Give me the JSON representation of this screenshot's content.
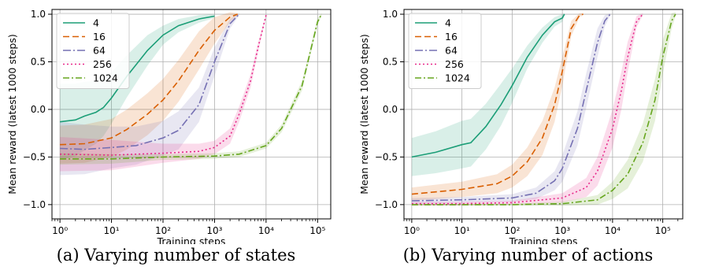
{
  "chart_data": [
    {
      "type": "line",
      "panel_label": "(a)",
      "caption": "(a) Varying number of states",
      "xlabel": "Training steps",
      "ylabel": "Mean reward (latest 1000 steps)",
      "x_scale": "log",
      "xlim": [
        0.7,
        180000
      ],
      "ylim": [
        -1.15,
        1.05
      ],
      "x_ticks": [
        1,
        10,
        100,
        1000,
        10000,
        100000
      ],
      "x_tick_labels": [
        "10⁰",
        "10¹",
        "10²",
        "10³",
        "10⁴",
        "10⁵"
      ],
      "y_ticks": [
        -1.0,
        -0.5,
        0.0,
        0.5,
        1.0
      ],
      "y_tick_labels": [
        "−1.0",
        "−0.5",
        "0.0",
        "0.5",
        "1.0"
      ],
      "grid": true,
      "legend_position": "top-left",
      "series": [
        {
          "name": "4",
          "color": "#1b9e77",
          "dash": "solid",
          "x": [
            1,
            2,
            3,
            5,
            7,
            10,
            20,
            50,
            100,
            200,
            500,
            1000
          ],
          "y": [
            -0.13,
            -0.11,
            -0.07,
            -0.03,
            0.02,
            0.12,
            0.35,
            0.62,
            0.78,
            0.88,
            0.95,
            0.98
          ],
          "band": [
            0.4,
            0.38,
            0.36,
            0.33,
            0.3,
            0.27,
            0.22,
            0.16,
            0.1,
            0.07,
            0.04,
            0.02
          ]
        },
        {
          "name": "16",
          "color": "#d95f02",
          "dash": "8,4",
          "x": [
            1,
            3,
            10,
            20,
            50,
            100,
            200,
            500,
            1000,
            2000,
            2800
          ],
          "y": [
            -0.37,
            -0.36,
            -0.3,
            -0.21,
            -0.05,
            0.1,
            0.3,
            0.62,
            0.83,
            0.97,
            1.0
          ],
          "band": [
            0.2,
            0.2,
            0.2,
            0.21,
            0.22,
            0.22,
            0.22,
            0.2,
            0.14,
            0.05,
            0.01
          ]
        },
        {
          "name": "64",
          "color": "#7570b3",
          "dash": "10,3,2,3",
          "x": [
            1,
            3,
            10,
            30,
            100,
            200,
            500,
            1000,
            2000,
            3000
          ],
          "y": [
            -0.41,
            -0.42,
            -0.4,
            -0.38,
            -0.3,
            -0.22,
            0.05,
            0.5,
            0.9,
            1.0
          ],
          "band": [
            0.28,
            0.26,
            0.22,
            0.2,
            0.18,
            0.2,
            0.18,
            0.15,
            0.05,
            0.01
          ]
        },
        {
          "name": "256",
          "color": "#e7298a",
          "dash": "2,3",
          "x": [
            1,
            10,
            100,
            500,
            1000,
            2000,
            3000,
            5000,
            7000,
            10000
          ],
          "y": [
            -0.47,
            -0.48,
            -0.46,
            -0.44,
            -0.4,
            -0.28,
            -0.05,
            0.3,
            0.65,
            0.99
          ],
          "band": [
            0.18,
            0.16,
            0.1,
            0.08,
            0.07,
            0.08,
            0.08,
            0.07,
            0.05,
            0.01
          ]
        },
        {
          "name": "1024",
          "color": "#66a61e",
          "dash": "8,3,2,3",
          "x": [
            1,
            10,
            100,
            1000,
            3000,
            10000,
            20000,
            50000,
            100000,
            120000
          ],
          "y": [
            -0.52,
            -0.52,
            -0.5,
            -0.49,
            -0.47,
            -0.38,
            -0.2,
            0.25,
            0.92,
            1.0
          ],
          "band": [
            0.06,
            0.05,
            0.03,
            0.03,
            0.03,
            0.03,
            0.04,
            0.05,
            0.04,
            0.01
          ]
        }
      ]
    },
    {
      "type": "line",
      "panel_label": "(b)",
      "caption": "(b) Varying number of actions",
      "xlabel": "Training steps",
      "ylabel": "Mean reward (latest 1000 steps)",
      "x_scale": "log",
      "xlim": [
        0.7,
        250000
      ],
      "ylim": [
        -1.15,
        1.05
      ],
      "x_ticks": [
        1,
        10,
        100,
        1000,
        10000,
        100000
      ],
      "x_tick_labels": [
        "10⁰",
        "10¹",
        "10²",
        "10³",
        "10⁴",
        "10⁵"
      ],
      "y_ticks": [
        -1.0,
        -0.5,
        0.0,
        0.5,
        1.0
      ],
      "y_tick_labels": [
        "−1.0",
        "−0.5",
        "0.0",
        "0.5",
        "1.0"
      ],
      "grid": true,
      "legend_position": "top-left",
      "series": [
        {
          "name": "4",
          "color": "#1b9e77",
          "dash": "solid",
          "x": [
            1,
            3,
            10,
            15,
            30,
            60,
            100,
            200,
            400,
            700,
            1000,
            1100
          ],
          "y": [
            -0.5,
            -0.45,
            -0.37,
            -0.35,
            -0.18,
            0.05,
            0.25,
            0.55,
            0.78,
            0.92,
            0.96,
            1.0
          ],
          "band": [
            0.2,
            0.22,
            0.25,
            0.25,
            0.24,
            0.22,
            0.18,
            0.12,
            0.08,
            0.05,
            0.04,
            0.01
          ]
        },
        {
          "name": "16",
          "color": "#d95f02",
          "dash": "8,4",
          "x": [
            1,
            10,
            50,
            100,
            200,
            400,
            700,
            1000,
            1500,
            2200,
            2600
          ],
          "y": [
            -0.89,
            -0.84,
            -0.78,
            -0.7,
            -0.55,
            -0.3,
            0.05,
            0.4,
            0.85,
            0.99,
            1.0
          ],
          "band": [
            0.07,
            0.08,
            0.1,
            0.12,
            0.15,
            0.18,
            0.18,
            0.15,
            0.08,
            0.02,
            0.01
          ]
        },
        {
          "name": "64",
          "color": "#7570b3",
          "dash": "10,3,2,3",
          "x": [
            1,
            10,
            100,
            300,
            700,
            1000,
            2000,
            3000,
            5000,
            7000,
            9000
          ],
          "y": [
            -0.96,
            -0.95,
            -0.93,
            -0.88,
            -0.75,
            -0.62,
            -0.2,
            0.2,
            0.7,
            0.93,
            1.0
          ],
          "band": [
            0.03,
            0.03,
            0.04,
            0.06,
            0.1,
            0.14,
            0.18,
            0.18,
            0.15,
            0.06,
            0.01
          ]
        },
        {
          "name": "256",
          "color": "#e7298a",
          "dash": "2,3",
          "x": [
            1,
            10,
            100,
            1000,
            3000,
            5000,
            10000,
            15000,
            20000,
            30000,
            40000
          ],
          "y": [
            -0.99,
            -0.99,
            -0.98,
            -0.93,
            -0.82,
            -0.65,
            -0.2,
            0.2,
            0.55,
            0.92,
            1.0
          ],
          "band": [
            0.02,
            0.02,
            0.02,
            0.05,
            0.1,
            0.15,
            0.2,
            0.2,
            0.16,
            0.06,
            0.01
          ]
        },
        {
          "name": "1024",
          "color": "#66a61e",
          "dash": "8,3,2,3",
          "x": [
            1,
            100,
            1000,
            5000,
            10000,
            20000,
            40000,
            70000,
            100000,
            150000,
            180000
          ],
          "y": [
            -1.0,
            -1.0,
            -0.99,
            -0.95,
            -0.85,
            -0.68,
            -0.35,
            0.1,
            0.55,
            0.93,
            1.0
          ],
          "band": [
            0.01,
            0.01,
            0.02,
            0.05,
            0.09,
            0.15,
            0.2,
            0.22,
            0.18,
            0.08,
            0.02
          ]
        }
      ]
    }
  ]
}
